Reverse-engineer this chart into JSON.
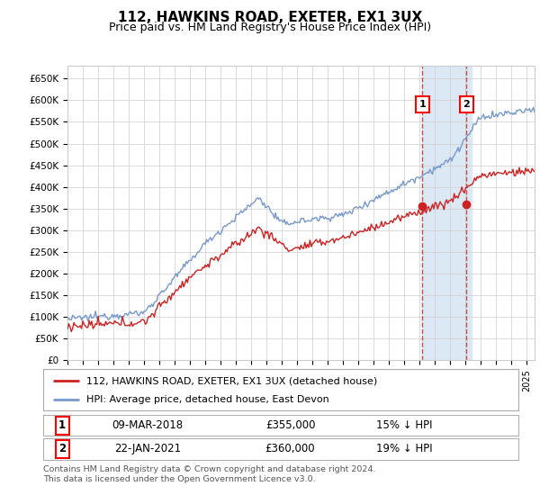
{
  "title": "112, HAWKINS ROAD, EXETER, EX1 3UX",
  "subtitle": "Price paid vs. HM Land Registry's House Price Index (HPI)",
  "ylim": [
    0,
    680000
  ],
  "xlim_start": 1995.0,
  "xlim_end": 2025.5,
  "marker1_x": 2018.18,
  "marker1_y": 355000,
  "marker1_label": "09-MAR-2018",
  "marker1_price": "£355,000",
  "marker1_pct": "15% ↓ HPI",
  "marker2_x": 2021.06,
  "marker2_y": 360000,
  "marker2_label": "22-JAN-2021",
  "marker2_price": "£360,000",
  "marker2_pct": "19% ↓ HPI",
  "legend_line1": "112, HAWKINS ROAD, EXETER, EX1 3UX (detached house)",
  "legend_line2": "HPI: Average price, detached house, East Devon",
  "footer": "Contains HM Land Registry data © Crown copyright and database right 2024.\nThis data is licensed under the Open Government Licence v3.0.",
  "plot_bg": "#ffffff",
  "red_color": "#cc2222",
  "blue_color": "#7799cc",
  "highlight_bg": "#dde8f5",
  "grid_color": "#cccccc"
}
